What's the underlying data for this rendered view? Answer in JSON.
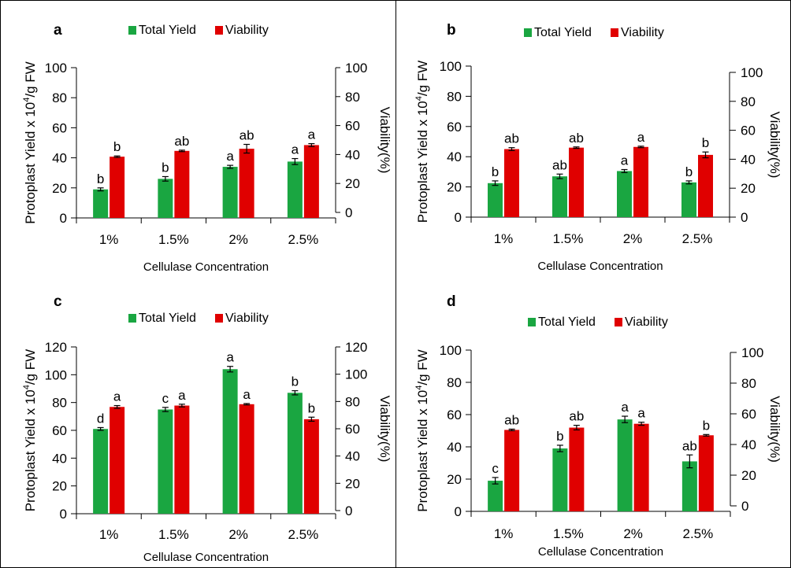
{
  "colors": {
    "total_yield": "#1aa641",
    "viability": "#e00000"
  },
  "chart_data": [
    {
      "panel_label": "a",
      "type": "bar",
      "categories": [
        "1%",
        "1.5%",
        "2%",
        "2.5%"
      ],
      "xlabel": "Cellulase Concentration",
      "ylabel": "Protoplast Yield x 10",
      "ylabel_sup": "4",
      "ylabel_end": "/g FW",
      "y2label": "Viability(%)",
      "ylim": [
        0,
        100
      ],
      "yticks": [
        "0",
        "20",
        "40",
        "60",
        "80",
        "100"
      ],
      "y2ticks": [
        "0",
        "20",
        "40",
        "60",
        "80",
        "100"
      ],
      "legend": [
        "Total  Yield",
        "Viability"
      ],
      "series": [
        {
          "name": "Total  Yield",
          "values": [
            19,
            26,
            34,
            37.5
          ],
          "errors": [
            1,
            1.5,
            1,
            2
          ],
          "letters": [
            "b",
            "b",
            "a",
            "a"
          ]
        },
        {
          "name": "Viability",
          "values": [
            38.5,
            42.5,
            44,
            46.5
          ],
          "errors": [
            0.5,
            0.5,
            3,
            1
          ],
          "letters": [
            "b",
            "ab",
            "ab",
            "a"
          ]
        }
      ]
    },
    {
      "panel_label": "b",
      "type": "bar",
      "categories": [
        "1%",
        "1.5%",
        "2%",
        "2.5%"
      ],
      "xlabel": "Cellulase Concentration",
      "ylabel": "Protoplast Yield x 10",
      "ylabel_sup": "4",
      "ylabel_end": "/g FW",
      "y2label": "Viability(%)",
      "ylim": [
        0,
        100
      ],
      "yticks": [
        "0",
        "20",
        "40",
        "60",
        "80",
        "100"
      ],
      "y2ticks": [
        "0",
        "20",
        "40",
        "60",
        "80",
        "100"
      ],
      "legend": [
        "Total  Yield",
        "Viability"
      ],
      "series": [
        {
          "name": "Total  Yield",
          "values": [
            22.5,
            27,
            30.5,
            23
          ],
          "errors": [
            1.5,
            1.5,
            1,
            1
          ],
          "letters": [
            "b",
            "ab",
            "a",
            "b"
          ]
        },
        {
          "name": "Viability",
          "values": [
            47,
            48,
            48.5,
            43
          ],
          "errors": [
            1,
            0.5,
            0.5,
            2
          ],
          "letters": [
            "ab",
            "ab",
            "a",
            "b"
          ]
        }
      ]
    },
    {
      "panel_label": "c",
      "type": "bar",
      "categories": [
        "1%",
        "1.5%",
        "2%",
        "2.5%"
      ],
      "xlabel": "Cellulase Concentration",
      "ylabel": "Protoplast Yield x 10",
      "ylabel_sup": "4",
      "ylabel_end": "/g FW",
      "y2label": "Viability(%)",
      "ylim": [
        0,
        120
      ],
      "yticks": [
        "0",
        "20",
        "40",
        "60",
        "80",
        "100",
        "120"
      ],
      "y2ticks": [
        "0",
        "20",
        "40",
        "60",
        "80",
        "100",
        "120"
      ],
      "legend": [
        "Total  Yield",
        "Viability"
      ],
      "series": [
        {
          "name": "Total  Yield",
          "values": [
            61,
            75,
            104,
            87
          ],
          "errors": [
            1,
            1.5,
            2,
            1.5
          ],
          "letters": [
            "d",
            "c",
            "a",
            "b"
          ]
        },
        {
          "name": "Viability",
          "values": [
            76,
            77,
            78,
            67
          ],
          "errors": [
            1,
            1,
            0.5,
            1.5
          ],
          "letters": [
            "a",
            "a",
            "a",
            "b"
          ]
        }
      ]
    },
    {
      "panel_label": "d",
      "type": "bar",
      "categories": [
        "1%",
        "1.5%",
        "2%",
        "2.5%"
      ],
      "xlabel": "Cellulase Concentration",
      "ylabel": "Protoplast Yield x 10",
      "ylabel_sup": "4",
      "ylabel_end": "/g FW",
      "y2label": "Viability(%)",
      "ylim": [
        0,
        100
      ],
      "yticks": [
        "0",
        "20",
        "40",
        "60",
        "80",
        "100"
      ],
      "y2ticks": [
        "0",
        "20",
        "40",
        "60",
        "80",
        "100"
      ],
      "legend": [
        "Total  Yield",
        "Viability"
      ],
      "series": [
        {
          "name": "Total  Yield",
          "values": [
            19,
            39,
            57,
            31
          ],
          "errors": [
            2,
            2,
            2,
            4
          ],
          "letters": [
            "c",
            "b",
            "a",
            "ab"
          ]
        },
        {
          "name": "Viability",
          "values": [
            49.5,
            51,
            53.5,
            46
          ],
          "errors": [
            0.5,
            1.5,
            1,
            0.5
          ],
          "letters": [
            "ab",
            "ab",
            "a",
            "b"
          ]
        }
      ]
    }
  ]
}
